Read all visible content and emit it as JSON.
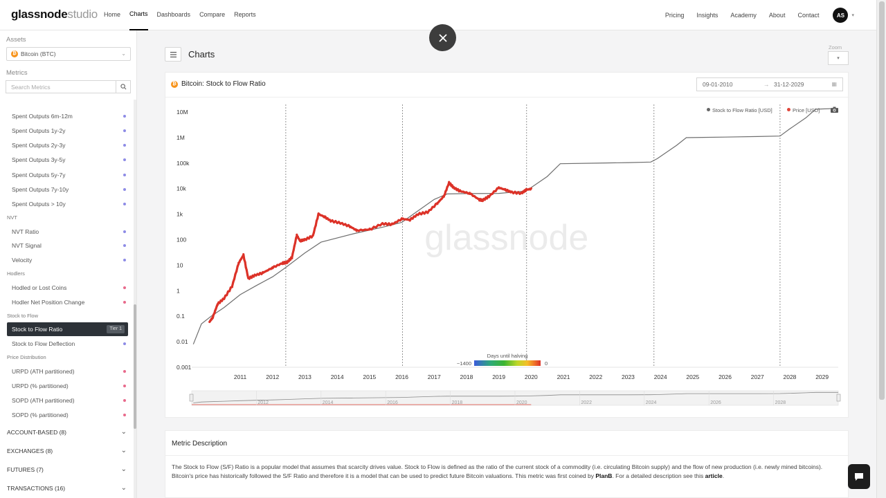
{
  "nav": {
    "logo_bold": "glassnode",
    "logo_light": "studio",
    "links": [
      "Home",
      "Charts",
      "Dashboards",
      "Compare",
      "Reports"
    ],
    "active": "Charts",
    "right_links": [
      "Pricing",
      "Insights",
      "Academy",
      "About",
      "Contact"
    ],
    "avatar": "AS"
  },
  "sidebar": {
    "assets_label": "Assets",
    "asset_value": "Bitcoin (BTC)",
    "metrics_label": "Metrics",
    "search_placeholder": "Search Metrics",
    "items": [
      {
        "type": "item",
        "label": "Spent Outputs 6m-12m",
        "dot": "#8e8ce6"
      },
      {
        "type": "item",
        "label": "Spent Outputs 1y-2y",
        "dot": "#8e8ce6"
      },
      {
        "type": "item",
        "label": "Spent Outputs 2y-3y",
        "dot": "#8e8ce6"
      },
      {
        "type": "item",
        "label": "Spent Outputs 3y-5y",
        "dot": "#8e8ce6"
      },
      {
        "type": "item",
        "label": "Spent Outputs 5y-7y",
        "dot": "#8e8ce6"
      },
      {
        "type": "item",
        "label": "Spent Outputs 7y-10y",
        "dot": "#8e8ce6"
      },
      {
        "type": "item",
        "label": "Spent Outputs > 10y",
        "dot": "#8e8ce6"
      },
      {
        "type": "group",
        "label": "NVT"
      },
      {
        "type": "item",
        "label": "NVT Ratio",
        "dot": "#8e8ce6"
      },
      {
        "type": "item",
        "label": "NVT Signal",
        "dot": "#8e8ce6"
      },
      {
        "type": "item",
        "label": "Velocity",
        "dot": "#8e8ce6"
      },
      {
        "type": "group",
        "label": "Hodlers"
      },
      {
        "type": "item",
        "label": "Hodled or Lost Coins",
        "dot": "#e86a8c"
      },
      {
        "type": "item",
        "label": "Hodler Net Position Change",
        "dot": "#e86a8c"
      },
      {
        "type": "group",
        "label": "Stock to Flow"
      },
      {
        "type": "selected",
        "label": "Stock to Flow Ratio",
        "tier": "Tier 1"
      },
      {
        "type": "item",
        "label": "Stock to Flow Deflection",
        "dot": "#8e8ce6"
      },
      {
        "type": "group",
        "label": "Price Distribution"
      },
      {
        "type": "item",
        "label": "URPD (ATH partitioned)",
        "dot": "#e86a8c"
      },
      {
        "type": "item",
        "label": "URPD (% partitioned)",
        "dot": "#e86a8c"
      },
      {
        "type": "item",
        "label": "SOPD (ATH partitioned)",
        "dot": "#e86a8c"
      },
      {
        "type": "item",
        "label": "SOPD (% partitioned)",
        "dot": "#e86a8c"
      }
    ],
    "categories": [
      "ACCOUNT-BASED (8)",
      "EXCHANGES (8)",
      "FUTURES (7)",
      "TRANSACTIONS (16)"
    ]
  },
  "main": {
    "title": "Charts",
    "zoom_label": "Zoom",
    "zoom_value": "▾"
  },
  "chart": {
    "title": "Bitcoin: Stock to Flow Ratio",
    "date_from": "09-01-2010",
    "date_arrow": "→",
    "date_to": "31-12-2029",
    "legend": [
      {
        "label": "Stock to Flow Ratio [USD]",
        "color": "#666666"
      },
      {
        "label": "Price [USD]",
        "color": "#e0463a"
      }
    ],
    "watermark": "glassnode",
    "colorbar_label": "Days until halving",
    "colorbar_min": "−1400",
    "colorbar_max": "0",
    "nav_years": [
      "2012",
      "2014",
      "2016",
      "2018",
      "2020",
      "2022",
      "2024",
      "2026",
      "2028"
    ]
  },
  "chart_data": {
    "type": "line",
    "title": "Bitcoin: Stock to Flow Ratio",
    "y_scale": "log",
    "y_ticks": [
      "10M",
      "1M",
      "100k",
      "10k",
      "1k",
      "100",
      "10",
      "1",
      "0.1",
      "0.01",
      "0.001"
    ],
    "x_ticks": [
      "2011",
      "2012",
      "2013",
      "2014",
      "2015",
      "2016",
      "2017",
      "2018",
      "2019",
      "2020",
      "2021",
      "2022",
      "2023",
      "2024",
      "2025",
      "2026",
      "2027",
      "2028",
      "2029"
    ],
    "halvings": [
      2012.91,
      2016.52,
      2020.36,
      2024.3,
      2028.2
    ],
    "series": [
      {
        "name": "Stock to Flow Ratio [USD]",
        "x": [
          2010.05,
          2010.3,
          2010.6,
          2011.0,
          2011.5,
          2012.0,
          2012.5,
          2012.9,
          2013.5,
          2014.0,
          2015.0,
          2016.0,
          2016.5,
          2016.9,
          2017.5,
          2017.9,
          2018.5,
          2019.5,
          2020.3,
          2020.4,
          2021.0,
          2021.4,
          2022.5,
          2023.5,
          2024.2,
          2024.4,
          2025.0,
          2025.3,
          2026.5,
          2027.5,
          2028.2,
          2028.5,
          2029.0,
          2029.3,
          2030.0
        ],
        "y": [
          0.008,
          0.05,
          0.1,
          0.22,
          0.7,
          1.6,
          3.5,
          8,
          30,
          80,
          170,
          330,
          480,
          1100,
          3800,
          6200,
          6400,
          6500,
          8000,
          9000,
          30000,
          95000,
          100000,
          105000,
          110000,
          150000,
          500000,
          1000000,
          1050000,
          1100000,
          1150000,
          2200000,
          6000000,
          13000000,
          14000000
        ]
      },
      {
        "name": "Price [USD]",
        "x": [
          2010.55,
          2010.65,
          2010.8,
          2011.0,
          2011.25,
          2011.45,
          2011.6,
          2011.75,
          2011.95,
          2012.2,
          2012.5,
          2012.8,
          2012.95,
          2013.1,
          2013.25,
          2013.35,
          2013.5,
          2013.75,
          2013.92,
          2014.1,
          2014.3,
          2014.6,
          2014.9,
          2015.1,
          2015.5,
          2015.9,
          2016.2,
          2016.5,
          2016.75,
          2017.0,
          2017.3,
          2017.6,
          2017.8,
          2017.96,
          2018.1,
          2018.3,
          2018.6,
          2018.9,
          2019.0,
          2019.2,
          2019.5,
          2019.7,
          2019.9,
          2020.2,
          2020.35,
          2020.5
        ],
        "y": [
          0.06,
          0.09,
          0.3,
          0.5,
          1.5,
          12,
          25,
          3,
          4,
          5,
          8,
          12,
          13,
          20,
          150,
          90,
          100,
          140,
          1000,
          800,
          550,
          450,
          330,
          230,
          250,
          420,
          400,
          650,
          600,
          1000,
          1200,
          2700,
          5000,
          17000,
          11000,
          8000,
          6500,
          3700,
          3500,
          5000,
          11000,
          9000,
          7200,
          6600,
          9000,
          9800
        ]
      }
    ]
  },
  "description": {
    "title": "Metric Description",
    "text": "The Stock to Flow (S/F) Ratio is a popular model that assumes that scarcity drives value. Stock to Flow is defined as the ratio of the current stock of a commodity (i.e. circulating Bitcoin supply) and the flow of new production (i.e. newly mined bitcoins). Bitcoin's price has historically followed the S/F Ratio and therefore it is a model that can be used to predict future Bitcoin valuations. This metric was first coined by ",
    "link1": "PlanB",
    "mid": ". For a detailed description see this ",
    "link2": "article",
    "end": "."
  }
}
